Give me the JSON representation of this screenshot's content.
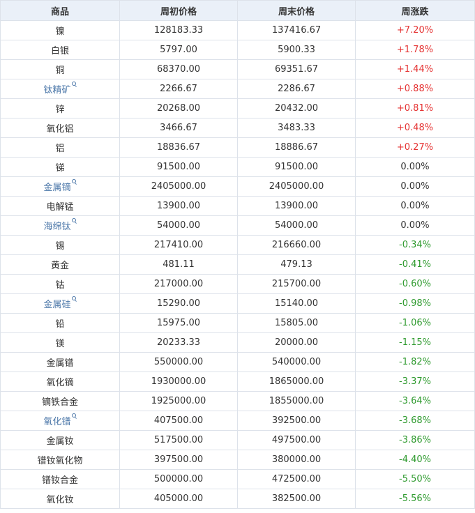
{
  "table": {
    "headers": [
      "商品",
      "周初价格",
      "周末价格",
      "周涨跌"
    ],
    "colors": {
      "up": "#e53333",
      "down": "#2e9a2e",
      "flat": "#333333",
      "link": "#4a76a8"
    },
    "rows": [
      {
        "name": "镍",
        "start": "128183.33",
        "end": "137416.67",
        "change": "+7.20%",
        "trend": "up",
        "link": false
      },
      {
        "name": "白银",
        "start": "5797.00",
        "end": "5900.33",
        "change": "+1.78%",
        "trend": "up",
        "link": false
      },
      {
        "name": "铜",
        "start": "68370.00",
        "end": "69351.67",
        "change": "+1.44%",
        "trend": "up",
        "link": false
      },
      {
        "name": "钛精矿",
        "start": "2266.67",
        "end": "2286.67",
        "change": "+0.88%",
        "trend": "up",
        "link": true
      },
      {
        "name": "锌",
        "start": "20268.00",
        "end": "20432.00",
        "change": "+0.81%",
        "trend": "up",
        "link": false
      },
      {
        "name": "氧化铝",
        "start": "3466.67",
        "end": "3483.33",
        "change": "+0.48%",
        "trend": "up",
        "link": false
      },
      {
        "name": "铝",
        "start": "18836.67",
        "end": "18886.67",
        "change": "+0.27%",
        "trend": "up",
        "link": false
      },
      {
        "name": "锑",
        "start": "91500.00",
        "end": "91500.00",
        "change": "0.00%",
        "trend": "flat",
        "link": false
      },
      {
        "name": "金属镝",
        "start": "2405000.00",
        "end": "2405000.00",
        "change": "0.00%",
        "trend": "flat",
        "link": true
      },
      {
        "name": "电解锰",
        "start": "13900.00",
        "end": "13900.00",
        "change": "0.00%",
        "trend": "flat",
        "link": false
      },
      {
        "name": "海绵钛",
        "start": "54000.00",
        "end": "54000.00",
        "change": "0.00%",
        "trend": "flat",
        "link": true
      },
      {
        "name": "锡",
        "start": "217410.00",
        "end": "216660.00",
        "change": "-0.34%",
        "trend": "down",
        "link": false
      },
      {
        "name": "黄金",
        "start": "481.11",
        "end": "479.13",
        "change": "-0.41%",
        "trend": "down",
        "link": false
      },
      {
        "name": "钴",
        "start": "217000.00",
        "end": "215700.00",
        "change": "-0.60%",
        "trend": "down",
        "link": false
      },
      {
        "name": "金属硅",
        "start": "15290.00",
        "end": "15140.00",
        "change": "-0.98%",
        "trend": "down",
        "link": true
      },
      {
        "name": "铅",
        "start": "15975.00",
        "end": "15805.00",
        "change": "-1.06%",
        "trend": "down",
        "link": false
      },
      {
        "name": "镁",
        "start": "20233.33",
        "end": "20000.00",
        "change": "-1.15%",
        "trend": "down",
        "link": false
      },
      {
        "name": "金属镨",
        "start": "550000.00",
        "end": "540000.00",
        "change": "-1.82%",
        "trend": "down",
        "link": false
      },
      {
        "name": "氧化镝",
        "start": "1930000.00",
        "end": "1865000.00",
        "change": "-3.37%",
        "trend": "down",
        "link": false
      },
      {
        "name": "镝铁合金",
        "start": "1925000.00",
        "end": "1855000.00",
        "change": "-3.64%",
        "trend": "down",
        "link": false
      },
      {
        "name": "氧化镨",
        "start": "407500.00",
        "end": "392500.00",
        "change": "-3.68%",
        "trend": "down",
        "link": true
      },
      {
        "name": "金属钕",
        "start": "517500.00",
        "end": "497500.00",
        "change": "-3.86%",
        "trend": "down",
        "link": false
      },
      {
        "name": "镨钕氧化物",
        "start": "397500.00",
        "end": "380000.00",
        "change": "-4.40%",
        "trend": "down",
        "link": false
      },
      {
        "name": "镨钕合金",
        "start": "500000.00",
        "end": "472500.00",
        "change": "-5.50%",
        "trend": "down",
        "link": false
      },
      {
        "name": "氧化钕",
        "start": "405000.00",
        "end": "382500.00",
        "change": "-5.56%",
        "trend": "down",
        "link": false
      }
    ]
  }
}
